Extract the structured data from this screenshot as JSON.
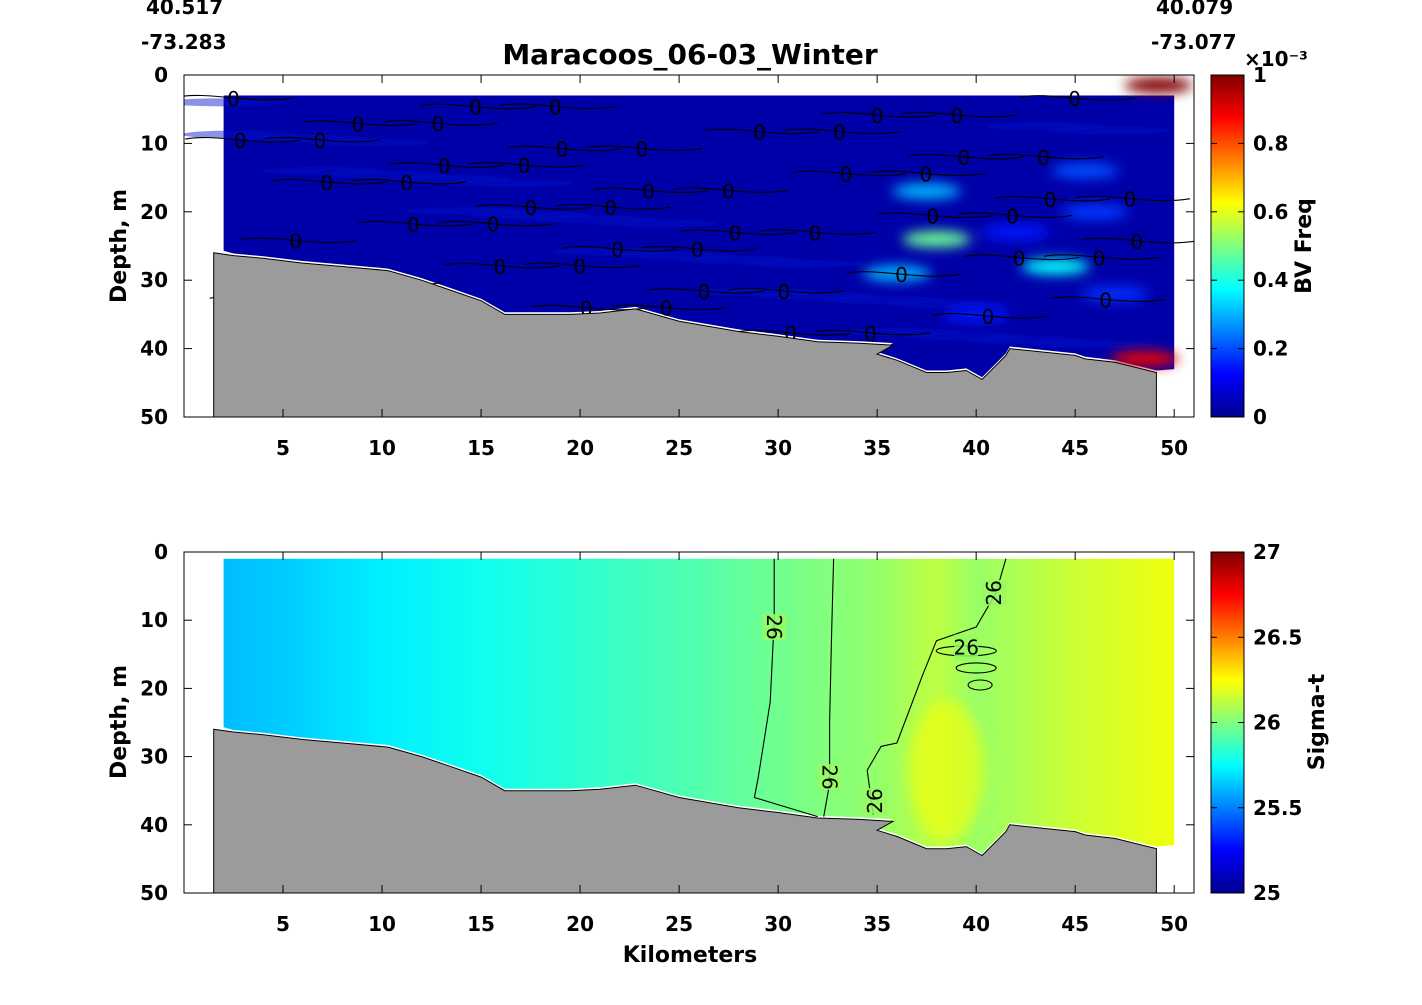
{
  "figure": {
    "title": "Maracoos_06-03_Winter",
    "corner_left": {
      "lat": "40.517",
      "lon": "-73.283"
    },
    "corner_right": {
      "lat": "40.079",
      "lon": "-73.077"
    },
    "xlabel": "Kilometers"
  },
  "chart_data": [
    {
      "type": "heatmap",
      "panel": "top",
      "quantity": "BV Freq",
      "ylabel": "Depth, m",
      "xlim": [
        0,
        51
      ],
      "ylim": [
        0,
        50
      ],
      "y_reversed": true,
      "xticks": [
        5,
        10,
        15,
        20,
        25,
        30,
        35,
        40,
        45,
        50
      ],
      "yticks": [
        0,
        10,
        20,
        30,
        40,
        50
      ],
      "colorbar": {
        "label": "BV Freq",
        "range": [
          0,
          1
        ],
        "multiplier_label": "×10⁻³",
        "ticks": [
          "0",
          "0.2",
          "0.4",
          "0.6",
          "0.8",
          "1"
        ],
        "colormap": "jet"
      },
      "contour_level": 0,
      "contour_label": "0",
      "data_extent_x": [
        2,
        50
      ],
      "background_value": 0.04,
      "hotspots": [
        {
          "x": 38,
          "y": 24,
          "value": 0.48
        },
        {
          "x": 44,
          "y": 28,
          "value": 0.38
        },
        {
          "x": 36,
          "y": 29,
          "value": 0.3
        },
        {
          "x": 37.5,
          "y": 17,
          "value": 0.3
        },
        {
          "x": 48.5,
          "y": 41.5,
          "value": 0.9
        },
        {
          "x": 49.2,
          "y": 1.5,
          "value": 1.0
        },
        {
          "x": 45.5,
          "y": 14,
          "value": 0.2
        },
        {
          "x": 46,
          "y": 20,
          "value": 0.18
        },
        {
          "x": 42,
          "y": 23,
          "value": 0.15
        },
        {
          "x": 47,
          "y": 32,
          "value": 0.17
        },
        {
          "x": 40,
          "y": 35,
          "value": 0.15
        }
      ]
    },
    {
      "type": "heatmap",
      "panel": "bottom",
      "quantity": "Sigma-t",
      "ylabel": "Depth, m",
      "xlim": [
        0,
        51
      ],
      "ylim": [
        0,
        50
      ],
      "y_reversed": true,
      "xticks": [
        5,
        10,
        15,
        20,
        25,
        30,
        35,
        40,
        45,
        50
      ],
      "yticks": [
        0,
        10,
        20,
        30,
        40,
        50
      ],
      "colorbar": {
        "label": "Sigma-t",
        "range": [
          25,
          27
        ],
        "ticks": [
          "25",
          "25.5",
          "26",
          "26.5",
          "27"
        ],
        "colormap": "jet"
      },
      "contour_level": 26,
      "contour_label": "26",
      "data_extent_x": [
        2,
        50
      ],
      "x": [
        2,
        5,
        10,
        15,
        20,
        25,
        30,
        32,
        35,
        38,
        40,
        45,
        50
      ],
      "values": [
        25.62,
        25.65,
        25.72,
        25.78,
        25.84,
        25.9,
        25.97,
        26.0,
        26.04,
        26.12,
        26.05,
        26.15,
        26.22
      ]
    }
  ],
  "bathymetry": {
    "x": [
      1.5,
      2.5,
      4,
      6,
      8,
      10.3,
      12,
      13.5,
      15,
      16.2,
      18,
      19.5,
      21,
      22.8,
      25,
      28,
      30,
      32,
      34,
      35.8,
      35,
      36,
      37.5,
      38.5,
      39.5,
      40.3,
      41.5,
      41.7,
      45,
      45.5,
      47,
      49.1,
      49.1,
      1.5
    ],
    "depth": [
      26,
      26.4,
      26.8,
      27.5,
      28,
      28.6,
      30,
      31.5,
      33,
      35,
      35,
      35,
      34.8,
      34.2,
      36,
      37.5,
      38.2,
      39,
      39.2,
      39.5,
      40.8,
      41.7,
      43.5,
      43.5,
      43.2,
      44.5,
      41,
      40,
      41,
      41.5,
      42,
      43.5,
      50,
      50
    ]
  }
}
